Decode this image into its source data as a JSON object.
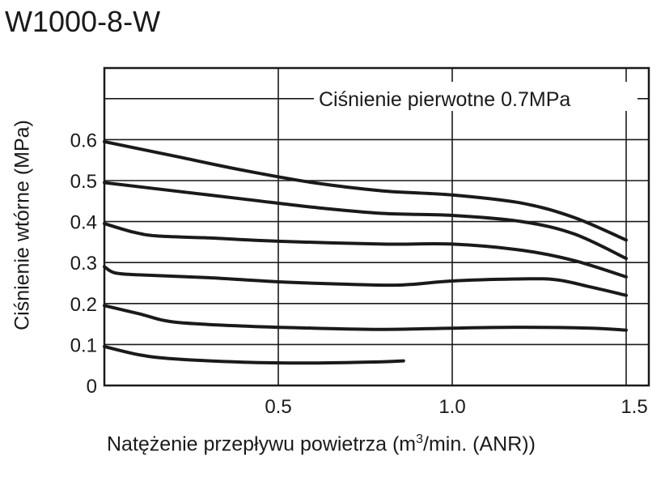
{
  "chart_data": {
    "type": "line",
    "title": "W1000-8-W",
    "xlabel_main": "Natężenie przepływu powietrza (m",
    "xlabel_sup": "3",
    "xlabel_tail": "/min. (ANR))",
    "ylabel": "Ciśnienie wtórne  (MPa)",
    "xlim": [
      0,
      1.55
    ],
    "ylim": [
      0,
      0.78
    ],
    "x_ticks": [
      "0.5",
      "1.0",
      "1.5"
    ],
    "x_tick_values": [
      0.5,
      1.0,
      1.5
    ],
    "y_ticks": [
      "0",
      "0.1",
      "0.2",
      "0.3",
      "0.4",
      "0.5",
      "0.6"
    ],
    "y_tick_values": [
      0,
      0.1,
      0.2,
      0.3,
      0.4,
      0.5,
      0.6
    ],
    "grid_h": [
      0.1,
      0.2,
      0.3,
      0.4,
      0.5,
      0.6,
      0.7
    ],
    "grid_v": [
      0.5,
      1.0,
      1.5
    ],
    "annotation": "Ciśnienie pierwotne 0.7MPa",
    "grid": true,
    "series": [
      {
        "x": [
          0,
          0.2,
          0.4,
          0.6,
          0.8,
          1.0,
          1.2,
          1.35,
          1.5
        ],
        "values": [
          0.595,
          0.56,
          0.525,
          0.495,
          0.475,
          0.465,
          0.445,
          0.41,
          0.355
        ]
      },
      {
        "x": [
          0,
          0.2,
          0.4,
          0.6,
          0.8,
          1.0,
          1.2,
          1.35,
          1.5
        ],
        "values": [
          0.495,
          0.475,
          0.455,
          0.435,
          0.42,
          0.415,
          0.4,
          0.37,
          0.31
        ]
      },
      {
        "x": [
          0,
          0.08,
          0.15,
          0.3,
          0.5,
          0.8,
          1.0,
          1.2,
          1.35,
          1.5
        ],
        "values": [
          0.395,
          0.375,
          0.365,
          0.36,
          0.352,
          0.345,
          0.345,
          0.33,
          0.305,
          0.265
        ]
      },
      {
        "x": [
          0,
          0.03,
          0.1,
          0.3,
          0.5,
          0.7,
          0.85,
          1.0,
          1.2,
          1.3,
          1.4,
          1.5
        ],
        "values": [
          0.29,
          0.275,
          0.27,
          0.263,
          0.253,
          0.247,
          0.245,
          0.255,
          0.26,
          0.258,
          0.24,
          0.22
        ]
      },
      {
        "x": [
          0,
          0.1,
          0.2,
          0.4,
          0.6,
          0.8,
          1.0,
          1.2,
          1.4,
          1.5
        ],
        "values": [
          0.195,
          0.175,
          0.155,
          0.145,
          0.14,
          0.137,
          0.14,
          0.142,
          0.14,
          0.135
        ]
      },
      {
        "x": [
          0,
          0.1,
          0.2,
          0.4,
          0.6,
          0.8,
          0.86
        ],
        "values": [
          0.095,
          0.075,
          0.065,
          0.057,
          0.055,
          0.058,
          0.06
        ]
      }
    ]
  }
}
